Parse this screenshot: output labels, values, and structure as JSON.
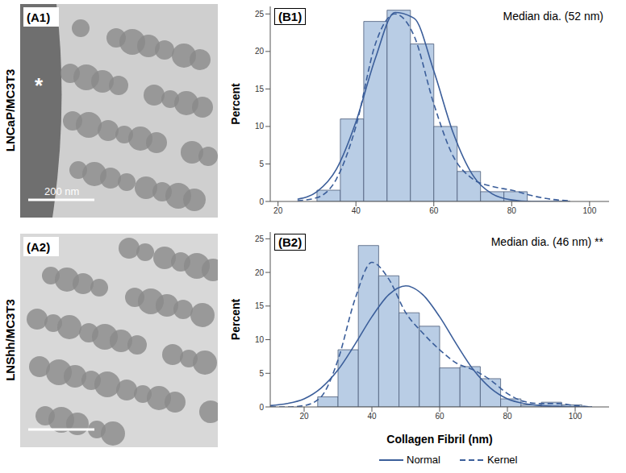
{
  "images": [
    {
      "label": "(A1)",
      "row_label": "LNCaP/MC3T3",
      "annotation": "*",
      "scale_bar": "200 nm"
    },
    {
      "label": "(A2)",
      "row_label": "LNShh/MC3T3"
    }
  ],
  "chart_data": [
    {
      "type": "histogram",
      "title": "(B1)",
      "annotation": "Median dia. (52 nm)",
      "y_label": "Percent",
      "bins": [
        30,
        36,
        42,
        48,
        54,
        60,
        66,
        72,
        78,
        84
      ],
      "values": [
        1.5,
        11,
        24,
        25.5,
        21,
        10,
        4,
        1.3,
        1.3
      ],
      "color": "#b9cde5",
      "xlim": [
        18,
        105
      ],
      "xticks": [
        20,
        40,
        60,
        80,
        100
      ],
      "ylim": [
        0,
        26
      ],
      "yticks": [
        0,
        5,
        10,
        15,
        20,
        25
      ],
      "grid": false,
      "legend": "bottom",
      "x": [
        25,
        30,
        35,
        40,
        45,
        50,
        55,
        60,
        65,
        70,
        75,
        80,
        85,
        90,
        95
      ],
      "series": [
        {
          "name": "Normal",
          "type": "line",
          "line_style": "solid",
          "color": "#3b5e9a",
          "values": [
            0.3,
            1.3,
            4.3,
            10.6,
            19.1,
            25.2,
            24.4,
            17.4,
            9.1,
            3.5,
            1.0,
            0.2,
            0.0,
            0.0,
            0.0
          ]
        },
        {
          "name": "Kernel",
          "type": "line",
          "line_style": "dashed",
          "color": "#3b5e9a",
          "values": [
            0.1,
            0.5,
            3,
            10,
            21,
            25,
            22,
            13,
            6,
            3,
            2,
            1.5,
            0.8,
            0.3,
            0.1
          ]
        }
      ]
    },
    {
      "type": "histogram",
      "title": "(B2)",
      "annotation": "Median dia. (46 nm) **",
      "x_label": "Collagen Fibril (nm)",
      "y_label": "Percent",
      "bins": [
        24,
        30,
        36,
        42,
        48,
        54,
        60,
        66,
        72,
        78,
        84,
        90,
        96,
        102
      ],
      "values": [
        1.5,
        8.5,
        24,
        19.5,
        14,
        12,
        5.8,
        6,
        4.2,
        1.2,
        0.3,
        0.7,
        0.3
      ],
      "color": "#b9cde5",
      "xlim": [
        10,
        110
      ],
      "xticks": [
        20,
        40,
        60,
        80,
        100
      ],
      "ylim": [
        0,
        26
      ],
      "yticks": [
        0,
        5,
        10,
        15,
        20,
        25
      ],
      "grid": false,
      "legend": "bottom",
      "x": [
        10,
        15,
        20,
        25,
        30,
        35,
        40,
        45,
        50,
        55,
        60,
        65,
        70,
        75,
        80,
        85,
        90,
        95,
        100,
        105
      ],
      "series": [
        {
          "name": "Normal",
          "type": "line",
          "line_style": "solid",
          "color": "#3b5e9a",
          "values": [
            0.2,
            0.5,
            1.2,
            2.8,
            5.5,
            9.3,
            13.4,
            16.7,
            18,
            16.7,
            13.4,
            9.3,
            5.5,
            2.8,
            1.2,
            0.5,
            0.2,
            0.1,
            0.0,
            0.0
          ]
        },
        {
          "name": "Kernel",
          "type": "line",
          "line_style": "dashed",
          "color": "#3b5e9a",
          "values": [
            0,
            0,
            0.2,
            1.5,
            7,
            16,
            21.5,
            19,
            14,
            11,
            8.5,
            6.5,
            5.5,
            4,
            2,
            0.8,
            0.5,
            0.5,
            0.2,
            0
          ]
        }
      ]
    }
  ]
}
